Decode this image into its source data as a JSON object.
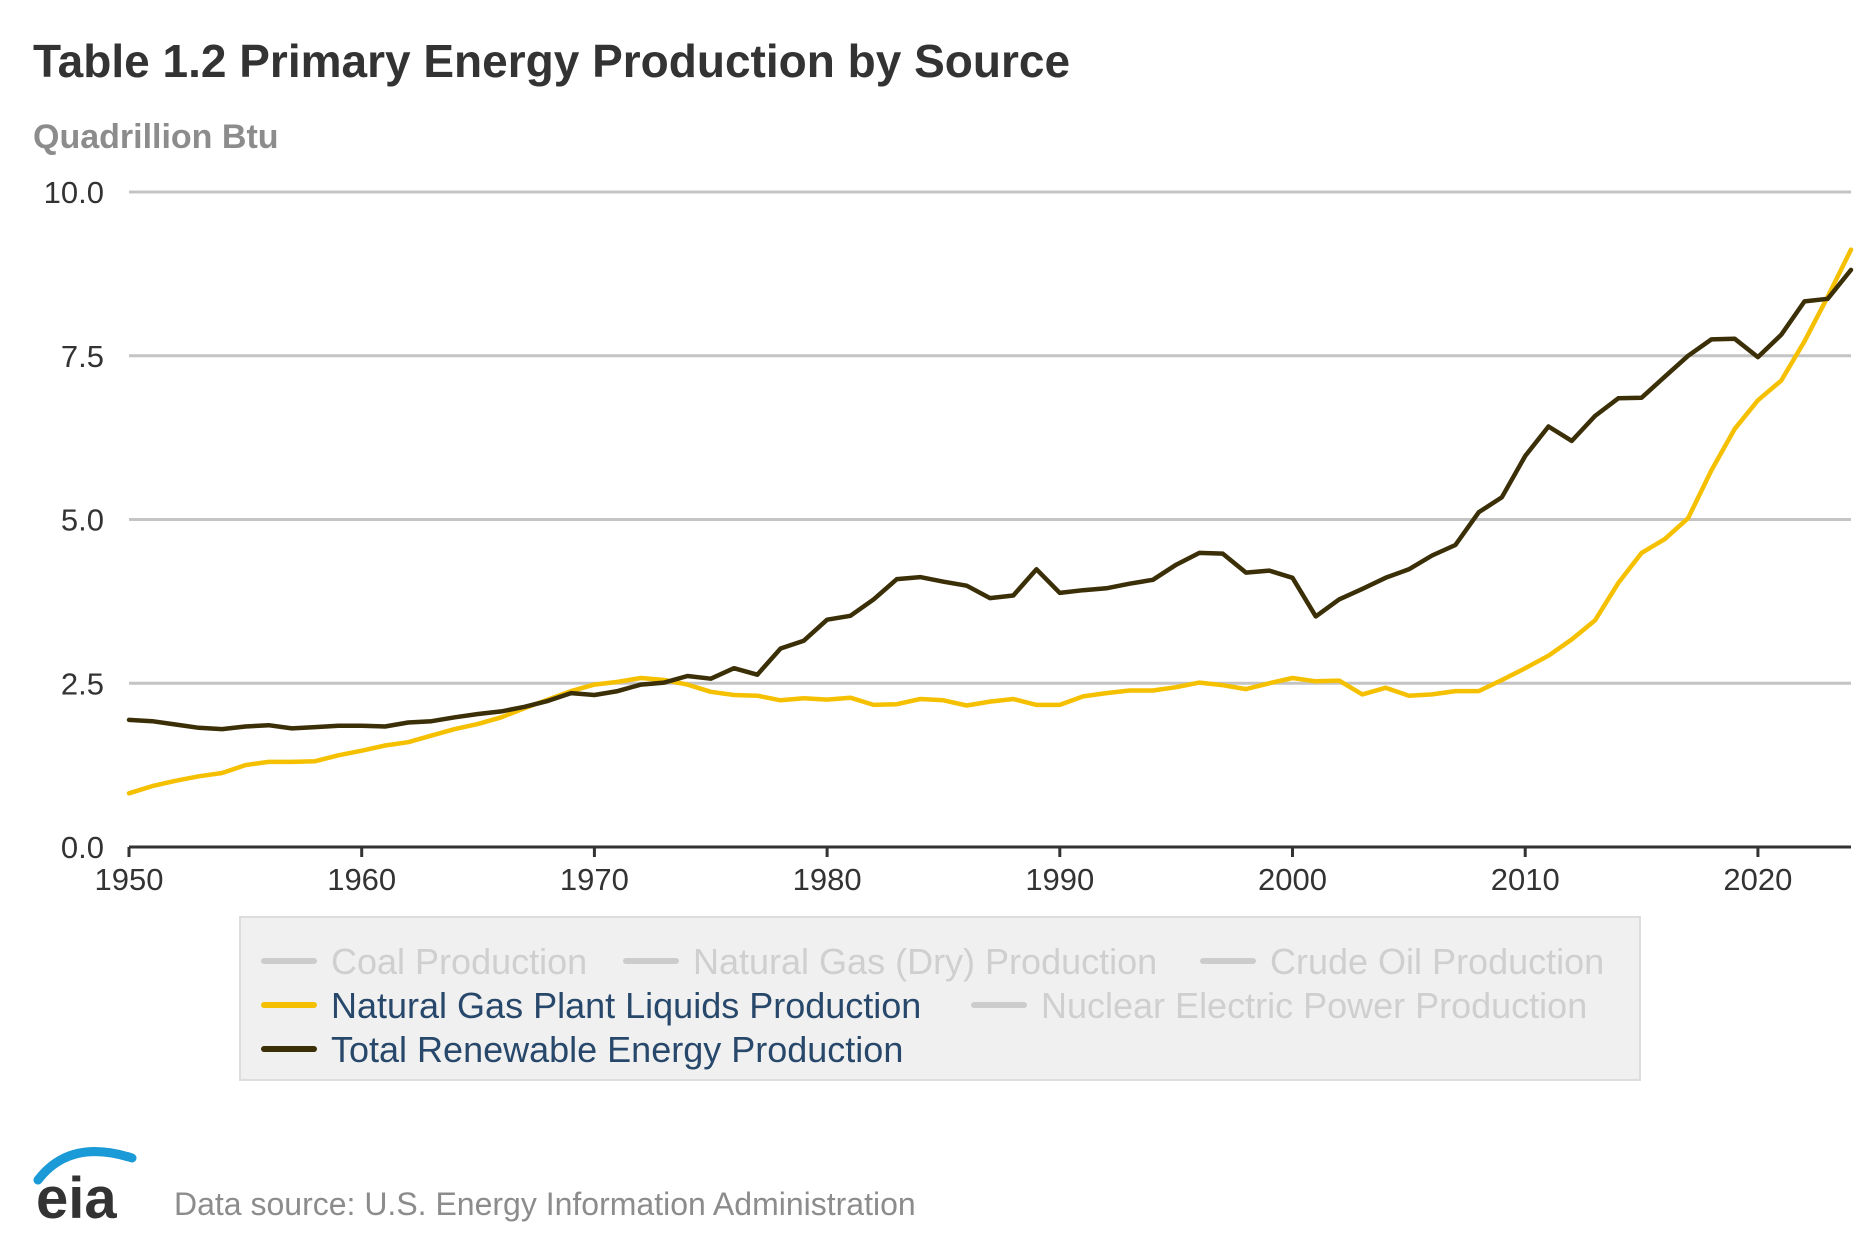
{
  "brand": {
    "logo_text": "eia",
    "source_text": "Data source: U.S. Energy Information Administration"
  },
  "chart_data": {
    "type": "line",
    "title": "Table 1.2 Primary Energy Production by Source",
    "ylabel": "Quadrillion Btu",
    "xlabel": "",
    "xlim": [
      1950,
      2024
    ],
    "ylim": [
      0,
      10
    ],
    "x_ticks": [
      1950,
      1960,
      1970,
      1980,
      1990,
      2000,
      2010,
      2020
    ],
    "y_ticks": [
      0,
      2.5,
      5,
      7.5,
      10
    ],
    "y_tick_labels": [
      "0.0",
      "2.5",
      "5.0",
      "7.5",
      "10.0"
    ],
    "grid": true,
    "legend_position": "bottom",
    "legend": [
      {
        "name": "Coal Production",
        "color": "#cccccc",
        "active": false
      },
      {
        "name": "Natural Gas (Dry) Production",
        "color": "#cccccc",
        "active": false
      },
      {
        "name": "Crude Oil Production",
        "color": "#cccccc",
        "active": false
      },
      {
        "name": "Natural Gas Plant Liquids Production",
        "color": "#f5c000",
        "active": true
      },
      {
        "name": "Nuclear Electric Power Production",
        "color": "#cccccc",
        "active": false
      },
      {
        "name": "Total Renewable Energy Production",
        "color": "#3b2f08",
        "active": true
      }
    ],
    "x": [
      1950,
      1951,
      1952,
      1953,
      1954,
      1955,
      1956,
      1957,
      1958,
      1959,
      1960,
      1961,
      1962,
      1963,
      1964,
      1965,
      1966,
      1967,
      1968,
      1969,
      1970,
      1971,
      1972,
      1973,
      1974,
      1975,
      1976,
      1977,
      1978,
      1979,
      1980,
      1981,
      1982,
      1983,
      1984,
      1985,
      1986,
      1987,
      1988,
      1989,
      1990,
      1991,
      1992,
      1993,
      1994,
      1995,
      1996,
      1997,
      1998,
      1999,
      2000,
      2001,
      2002,
      2003,
      2004,
      2005,
      2006,
      2007,
      2008,
      2009,
      2010,
      2011,
      2012,
      2013,
      2014,
      2015,
      2016,
      2017,
      2018,
      2019,
      2020,
      2021,
      2022,
      2023,
      2024
    ],
    "series": [
      {
        "name": "Natural Gas Plant Liquids Production",
        "color": "#f5c000",
        "values": [
          0.82,
          0.93,
          1.01,
          1.08,
          1.13,
          1.25,
          1.3,
          1.3,
          1.31,
          1.4,
          1.47,
          1.55,
          1.6,
          1.7,
          1.8,
          1.88,
          1.98,
          2.12,
          2.25,
          2.38,
          2.48,
          2.52,
          2.58,
          2.55,
          2.48,
          2.37,
          2.32,
          2.31,
          2.24,
          2.27,
          2.25,
          2.28,
          2.17,
          2.18,
          2.26,
          2.24,
          2.16,
          2.22,
          2.26,
          2.17,
          2.17,
          2.3,
          2.35,
          2.39,
          2.39,
          2.44,
          2.51,
          2.47,
          2.41,
          2.5,
          2.58,
          2.53,
          2.54,
          2.33,
          2.43,
          2.31,
          2.33,
          2.38,
          2.38,
          2.55,
          2.73,
          2.92,
          3.17,
          3.46,
          4.03,
          4.49,
          4.7,
          5.02,
          5.75,
          6.38,
          6.82,
          7.12,
          7.72,
          8.4,
          9.12
        ]
      },
      {
        "name": "Total Renewable Energy Production",
        "color": "#3b2f08",
        "values": [
          1.94,
          1.92,
          1.87,
          1.82,
          1.8,
          1.84,
          1.86,
          1.81,
          1.83,
          1.85,
          1.85,
          1.84,
          1.9,
          1.92,
          1.98,
          2.03,
          2.07,
          2.14,
          2.23,
          2.35,
          2.32,
          2.38,
          2.48,
          2.51,
          2.61,
          2.57,
          2.73,
          2.63,
          3.03,
          3.15,
          3.47,
          3.53,
          3.78,
          4.09,
          4.12,
          4.05,
          3.99,
          3.8,
          3.84,
          4.24,
          3.88,
          3.92,
          3.95,
          4.02,
          4.08,
          4.31,
          4.49,
          4.48,
          4.19,
          4.22,
          4.11,
          3.52,
          3.78,
          3.94,
          4.11,
          4.24,
          4.45,
          4.61,
          5.11,
          5.34,
          5.97,
          6.42,
          6.2,
          6.58,
          6.85,
          6.86,
          7.18,
          7.5,
          7.75,
          7.76,
          7.48,
          7.82,
          8.33,
          8.37,
          8.81
        ]
      }
    ]
  }
}
